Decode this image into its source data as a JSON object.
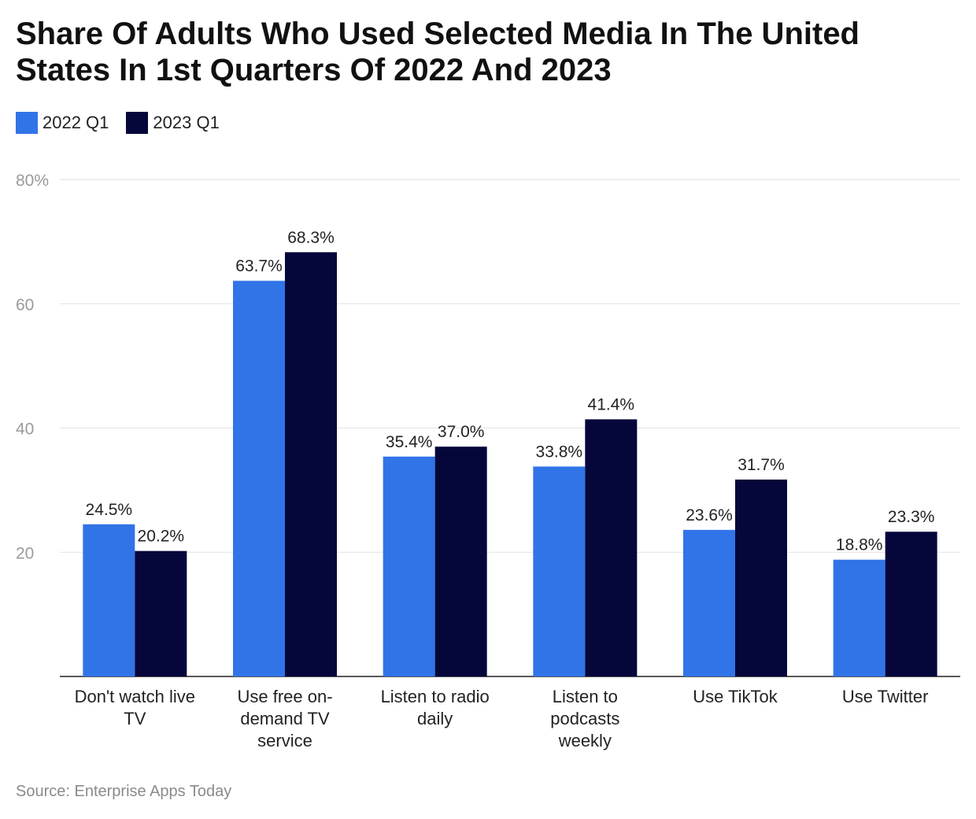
{
  "chart_data": {
    "type": "bar",
    "title": "Share Of Adults Who Used Selected Media In The United States In 1st Quarters Of 2022 And 2023",
    "categories": [
      [
        "Don't watch live",
        "TV"
      ],
      [
        "Use free on-",
        "demand TV",
        "service"
      ],
      [
        "Listen to radio",
        "daily"
      ],
      [
        "Listen to",
        "podcasts",
        "weekly"
      ],
      [
        "Use TikTok"
      ],
      [
        "Use Twitter"
      ]
    ],
    "series": [
      {
        "name": "2022 Q1",
        "color": "#3174e8",
        "values": [
          24.5,
          63.7,
          35.4,
          33.8,
          23.6,
          18.8
        ],
        "labels": [
          "24.5%",
          "63.7%",
          "35.4%",
          "33.8%",
          "23.6%",
          "18.8%"
        ]
      },
      {
        "name": "2023 Q1",
        "color": "#05063a",
        "values": [
          20.2,
          68.3,
          37.0,
          41.4,
          31.7,
          23.3
        ],
        "labels": [
          "20.2%",
          "68.3%",
          "37.0%",
          "41.4%",
          "31.7%",
          "23.3%"
        ]
      }
    ],
    "ylim": [
      0,
      80
    ],
    "yticks": [
      20,
      40,
      60,
      80
    ],
    "ytick_labels": [
      "20",
      "40",
      "60",
      "80%"
    ],
    "xlabel": "",
    "ylabel": "",
    "grid": true,
    "legend_position": "top-left"
  },
  "source": "Source: Enterprise Apps Today"
}
